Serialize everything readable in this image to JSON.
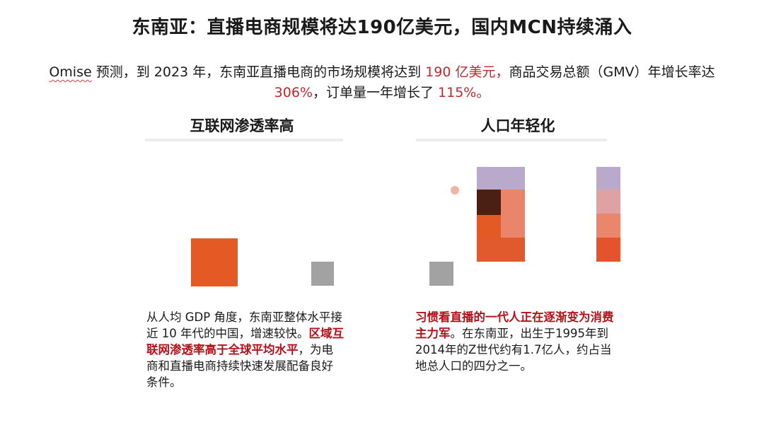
{
  "title": "东南亚：直播电商规模将达190亿美元，国内MCN持续涌入",
  "intro": {
    "brand": "Omise",
    "part1": " 预测，到 2023 年，东南亚直播电商的市场规模将达到 ",
    "red1": "190 亿美元，",
    "part2": "商品交易总额（GMV）年增长率达 ",
    "red2": "306%",
    "part3": "，订单量一年增长了 ",
    "red3": "115%。"
  },
  "left": {
    "heading": "互联网渗透率高",
    "text1": "从人均 GDP 角度，东南亚整体水平接近 10 年代的中国，增速较快。",
    "highlight": "区域互联网渗透率高于全球平均水平",
    "text2": "，为电商和直播电商持续快速发展配备良好条件。"
  },
  "right": {
    "heading": "人口年轻化",
    "highlight": "习惯看直播的一代人正在逐渐变为消费主力军",
    "text": "。在东南亚，出生于1995年到2014年的Z世代约有1.7亿人，约占当地总人口的四分之一。"
  },
  "colors": {
    "accent_red": "#c0292b",
    "highlight_red": "#b4111b",
    "orange": "#e35a25",
    "grey": "#a2a2a2",
    "lavender": "#b9aacb",
    "salmon": "#ea846a",
    "dark_brown": "#4a2013"
  }
}
